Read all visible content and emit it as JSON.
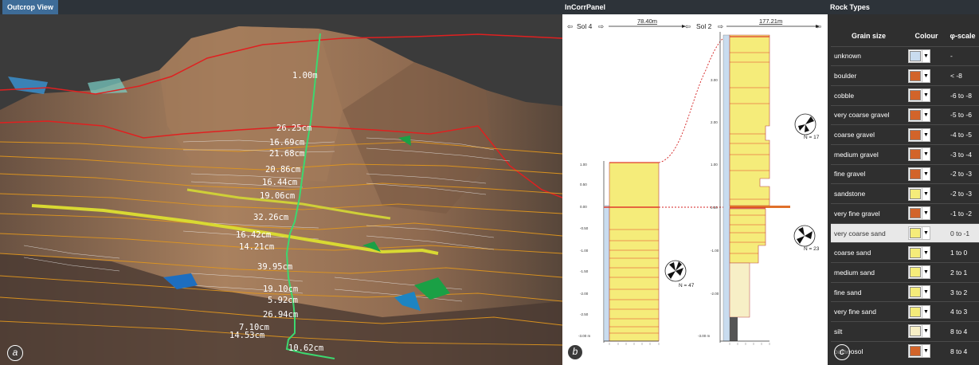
{
  "outcrop": {
    "title": "Outcrop View",
    "corner_label": "a",
    "measurements": [
      "1.00m",
      "26.25cm",
      "16.69cm",
      "21.68cm",
      "20.86cm",
      "16.44cm",
      "19.06cm",
      "32.26cm",
      "16.42cm",
      "14.21cm",
      "39.95cm",
      "19.10cm",
      "5.92cm",
      "26.94cm",
      "7.10cm",
      "14.53cm",
      "10.62cm"
    ]
  },
  "corr": {
    "title": "InCorrPanel",
    "corner_label": "b",
    "section1": {
      "label": "Sol 4",
      "distance": "78.40m",
      "rose_n": "N = 47",
      "ticks": [
        "1.00",
        "0.50",
        "0.00",
        "-0.50",
        "-1.00",
        "-1.50",
        "-2.00",
        "-2.50",
        "-3.00 m"
      ]
    },
    "section2": {
      "label": "Sol 2",
      "distance": "177.21m",
      "rose_n_top": "N = 17",
      "rose_n_bottom": "N = 23",
      "ticks": [
        "3.00",
        "2.00",
        "1.00",
        "0.00",
        "-1.00",
        "-2.00",
        "-3.00 m"
      ]
    }
  },
  "rock": {
    "title": "Rock Types",
    "corner_label": "c",
    "headers": {
      "grain": "Grain size",
      "colour": "Colour",
      "phi": "φ-scale"
    },
    "rows": [
      {
        "name": "unknown",
        "phi": "-",
        "color": "#c9dcef"
      },
      {
        "name": "boulder",
        "phi": "< -8",
        "color": "#d2642a"
      },
      {
        "name": "cobble",
        "phi": "-6 to -8",
        "color": "#d2642a"
      },
      {
        "name": "very coarse gravel",
        "phi": "-5 to -6",
        "color": "#d2642a"
      },
      {
        "name": "coarse gravel",
        "phi": "-4 to -5",
        "color": "#d2642a"
      },
      {
        "name": "medium gravel",
        "phi": "-3 to -4",
        "color": "#d2642a"
      },
      {
        "name": "fine gravel",
        "phi": "-2 to -3",
        "color": "#d2642a"
      },
      {
        "name": "sandstone",
        "phi": "-2 to -3",
        "color": "#f5ec7a"
      },
      {
        "name": "very fine gravel",
        "phi": "-1 to -2",
        "color": "#d2642a"
      },
      {
        "name": "very coarse sand",
        "phi": "0 to -1",
        "color": "#f5ec7a",
        "selected": true
      },
      {
        "name": "coarse sand",
        "phi": "1 to 0",
        "color": "#f5ec7a"
      },
      {
        "name": "medium sand",
        "phi": "2 to 1",
        "color": "#f5ec7a"
      },
      {
        "name": "fine sand",
        "phi": "3 to 2",
        "color": "#f5ec7a"
      },
      {
        "name": "very fine sand",
        "phi": "4 to 3",
        "color": "#f5ec7a"
      },
      {
        "name": "silt",
        "phi": "8 to 4",
        "color": "#f7efc6"
      },
      {
        "name": "palaeosol",
        "phi": "8 to 4",
        "color": "#d2642a"
      }
    ]
  }
}
